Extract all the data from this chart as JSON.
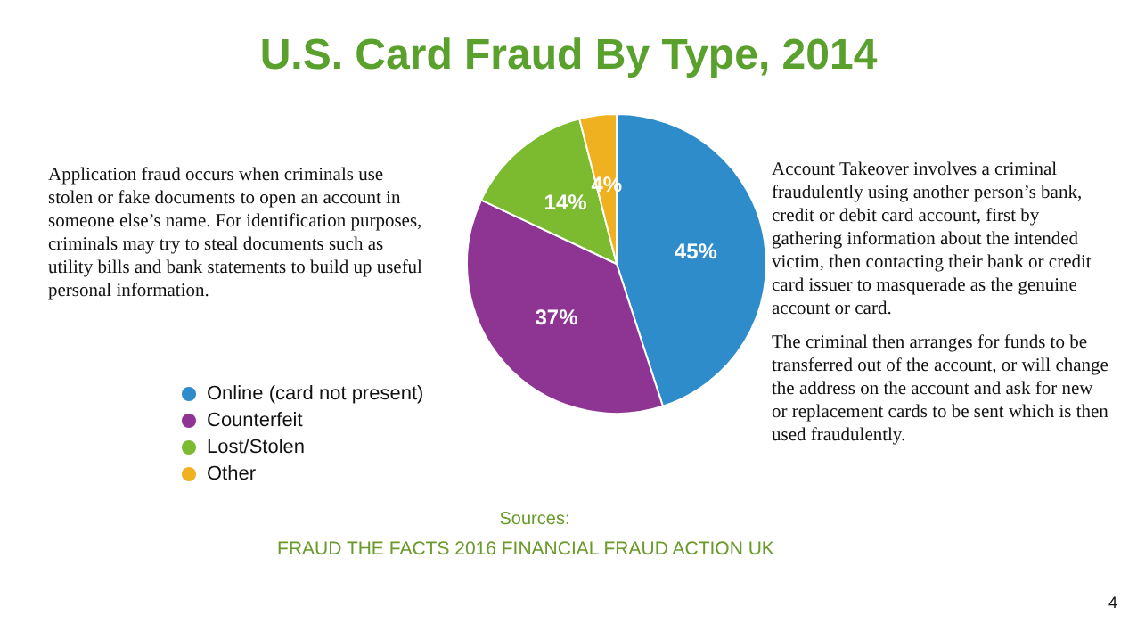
{
  "chart_data": {
    "type": "pie",
    "title": "U.S. Card Fraud By Type, 2014",
    "categories": [
      "Online (card not present)",
      "Counterfeit",
      "Lost/Stolen",
      "Other"
    ],
    "values": [
      45,
      37,
      14,
      4
    ],
    "colors": [
      "#2e8ccb",
      "#8e3594",
      "#7cba2f",
      "#efb120"
    ],
    "value_labels": [
      "45%",
      "37%",
      "14%",
      "4%"
    ],
    "legend": "left",
    "annotations": [
      "Application fraud occurs when criminals use stolen or fake documents to open an account in someone else’s name. For identification purposes, criminals may try to steal documents such as utility bills and bank statements to build up useful personal information.",
      "Account Takeover involves a criminal fraudulently using another person’s bank, credit or debit card account, first by gathering information about the intended victim, then contacting their bank or credit card issuer to masquerade as the genuine account or card.",
      "The criminal then arranges for funds to be transferred out of the account, or will change the address on the account and ask for new or replacement cards to be sent which is then used fraudulently.",
      "Sources:",
      "FRAUD THE FACTS 2016 FINANCIAL FRAUD ACTION UK",
      "4"
    ]
  }
}
